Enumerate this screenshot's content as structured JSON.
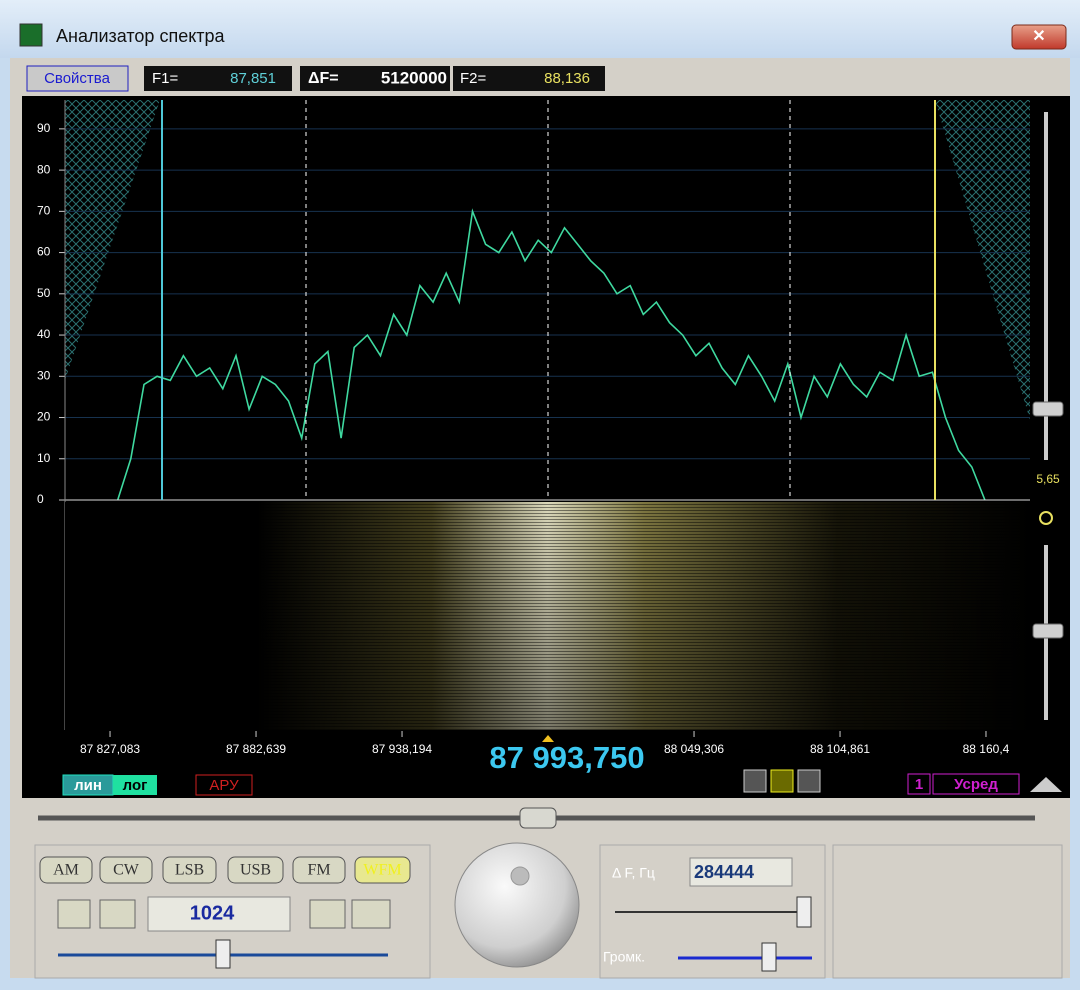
{
  "window": {
    "title": "Анализатор спектра"
  },
  "toolbar": {
    "properties_button": "Свойства",
    "f1_label": "F1=",
    "f1_value": "87,851",
    "df_label": "ΔF=",
    "df_value": "5120000",
    "f2_label": "F2=",
    "f2_value": "88,136"
  },
  "chart_data": {
    "type": "line",
    "color": "#3fd9a0",
    "center_label": "87 993,750",
    "x": [
      87830,
      87835,
      87840,
      87845,
      87850,
      87855,
      87860,
      87865,
      87870,
      87875,
      87880,
      87885,
      87890,
      87895,
      87900,
      87905,
      87910,
      87915,
      87920,
      87925,
      87930,
      87935,
      87940,
      87945,
      87950,
      87955,
      87960,
      87965,
      87970,
      87975,
      87980,
      87985,
      87990,
      87995,
      88000,
      88005,
      88010,
      88015,
      88020,
      88025,
      88030,
      88035,
      88040,
      88045,
      88050,
      88055,
      88060,
      88065,
      88070,
      88075,
      88080,
      88085,
      88090,
      88095,
      88100,
      88105,
      88110,
      88115,
      88120,
      88125,
      88130,
      88135,
      88140,
      88145,
      88150,
      88155,
      88160
    ],
    "values": [
      0,
      10,
      28,
      30,
      29,
      35,
      30,
      32,
      27,
      35,
      22,
      30,
      28,
      24,
      15,
      33,
      36,
      15,
      37,
      40,
      35,
      45,
      40,
      52,
      48,
      55,
      48,
      70,
      62,
      60,
      65,
      58,
      63,
      60,
      66,
      62,
      58,
      55,
      50,
      52,
      45,
      48,
      43,
      40,
      35,
      38,
      32,
      28,
      35,
      30,
      24,
      33,
      20,
      30,
      25,
      33,
      28,
      25,
      31,
      29,
      40,
      30,
      31,
      20,
      12,
      8,
      0
    ],
    "xlim": [
      87809.95,
      88177.15
    ],
    "ylim": [
      0,
      97
    ],
    "yticks": [
      0,
      10,
      20,
      30,
      40,
      50,
      60,
      70,
      80,
      90
    ],
    "xticks": [
      {
        "value": 87827.083,
        "label": "87 827,083"
      },
      {
        "value": 87882.639,
        "label": "87 882,639"
      },
      {
        "value": 87938.194,
        "label": "87 938,194"
      },
      {
        "value": 88049.306,
        "label": "88 049,306"
      },
      {
        "value": 88104.861,
        "label": "88 104,861"
      },
      {
        "value": 88160.4,
        "label": "88 160,4"
      }
    ],
    "grid": true
  },
  "controls": {
    "scale_lin": "лин",
    "scale_log": "лог",
    "agc": "АРУ",
    "average_count": "1",
    "average": "Усред",
    "gain_value": "5,65"
  },
  "mode_buttons": [
    "AM",
    "CW",
    "LSB",
    "USB",
    "FM",
    "WFM"
  ],
  "fft_size": "1024",
  "delta_f_label": "Δ F, Гц",
  "delta_f_value": "284444",
  "volume_label": "Громк."
}
